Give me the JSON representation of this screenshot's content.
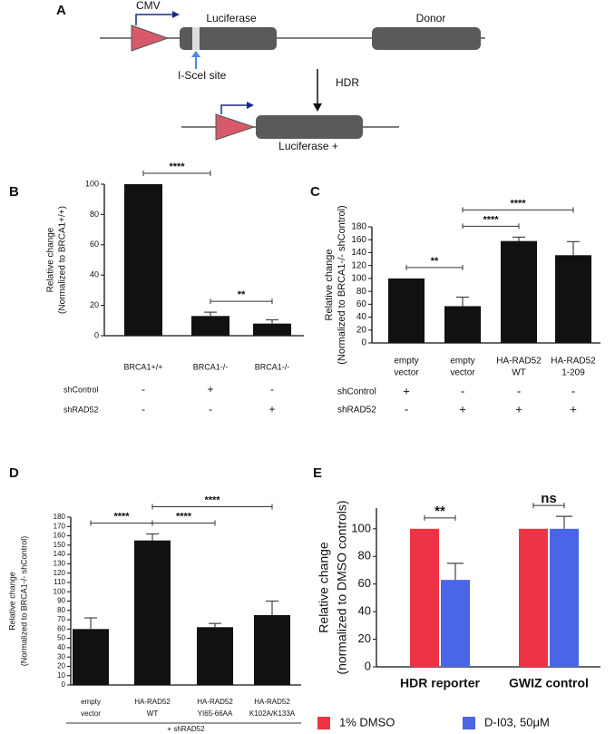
{
  "diagram": {
    "label": "A",
    "promoter": "CMV",
    "gene": "Luciferase",
    "donor": "Donor",
    "site": "I-SceI site",
    "step": "HDR",
    "product": "Luciferase +"
  },
  "chart_data": [
    {
      "type": "bar",
      "label": "B",
      "ylabel": [
        "Relative change",
        "(Normalized to BRCA1+/+)"
      ],
      "categories": [
        [
          "BRCA1+/+"
        ],
        [
          "BRCA1-/-"
        ],
        [
          "BRCA1-/-"
        ]
      ],
      "values": [
        100,
        13,
        8
      ],
      "errors": [
        null,
        2.5,
        2.5
      ],
      "color": "#111111",
      "ylim": [
        0,
        100
      ],
      "yticks": [
        0,
        20,
        40,
        60,
        80,
        100
      ],
      "conditions": [
        {
          "label": "shControl",
          "values": [
            "-",
            "+",
            "-"
          ]
        },
        {
          "label": "shRAD52",
          "values": [
            "-",
            "-",
            "+"
          ]
        }
      ],
      "significance": [
        {
          "from": 0,
          "to": 1,
          "label": "****"
        },
        {
          "from": 1,
          "to": 2,
          "label": "**"
        }
      ]
    },
    {
      "type": "bar",
      "label": "C",
      "ylabel": [
        "Relative change",
        "(Normalized to BRCA1-/- shControl)"
      ],
      "categories": [
        [
          "empty",
          "vector"
        ],
        [
          "empty",
          "vector"
        ],
        [
          "HA-RAD52",
          "WT"
        ],
        [
          "HA-RAD52",
          "1-209"
        ]
      ],
      "values": [
        100,
        57,
        158,
        136
      ],
      "errors": [
        null,
        14,
        6,
        21
      ],
      "color": "#111111",
      "ylim": [
        0,
        180
      ],
      "yticks": [
        0,
        20,
        40,
        60,
        80,
        100,
        120,
        140,
        160,
        180
      ],
      "conditions": [
        {
          "label": "shControl",
          "values": [
            "+",
            "-",
            "-",
            "-"
          ]
        },
        {
          "label": "shRAD52",
          "values": [
            "-",
            "+",
            "+",
            "+"
          ]
        }
      ],
      "significance": [
        {
          "from": 0,
          "to": 1,
          "label": "**"
        },
        {
          "from": 1,
          "to": 2,
          "label": "****"
        },
        {
          "from": 1,
          "to": 3,
          "label": "****"
        }
      ]
    },
    {
      "type": "bar",
      "label": "D",
      "ylabel": [
        "Relative change",
        "(Normalized to BRCA1-/- shControl)"
      ],
      "categories": [
        [
          "empty",
          "vector"
        ],
        [
          "HA-RAD52",
          "WT"
        ],
        [
          "HA-RAD52",
          "YI65-66AA"
        ],
        [
          "HA-RAD52",
          "K102A/K133A"
        ]
      ],
      "values": [
        60,
        155,
        62,
        75
      ],
      "errors": [
        12,
        7,
        4,
        15
      ],
      "color": "#111111",
      "ylim": [
        0,
        180
      ],
      "yticks": [
        0,
        10,
        20,
        30,
        40,
        50,
        60,
        70,
        80,
        90,
        100,
        110,
        120,
        130,
        140,
        150,
        160,
        170,
        180
      ],
      "footnote": "+ shRAD52",
      "significance": [
        {
          "from": 0,
          "to": 1,
          "label": "****"
        },
        {
          "from": 1,
          "to": 2,
          "label": "****"
        },
        {
          "from": 1,
          "to": 3,
          "label": "****"
        }
      ]
    },
    {
      "type": "grouped-bar",
      "label": "E",
      "ylabel": [
        "Relative change",
        "(normalized to DMSO controls)"
      ],
      "categories": [
        [
          "HDR reporter"
        ],
        [
          "GWIZ control"
        ]
      ],
      "series": [
        {
          "name": "1% DMSO",
          "color": "#ee3344",
          "values": [
            100,
            100
          ],
          "errors": [
            null,
            null
          ]
        },
        {
          "name": "D-I03, 50μM",
          "color": "#4a66e6",
          "values": [
            63,
            100
          ],
          "errors": [
            12,
            9
          ]
        }
      ],
      "ylim": [
        0,
        115
      ],
      "yticks": [
        0,
        20,
        40,
        60,
        80,
        100
      ],
      "significance": [
        {
          "group": 0,
          "label": "**"
        },
        {
          "group": 1,
          "label": "ns"
        }
      ]
    }
  ]
}
